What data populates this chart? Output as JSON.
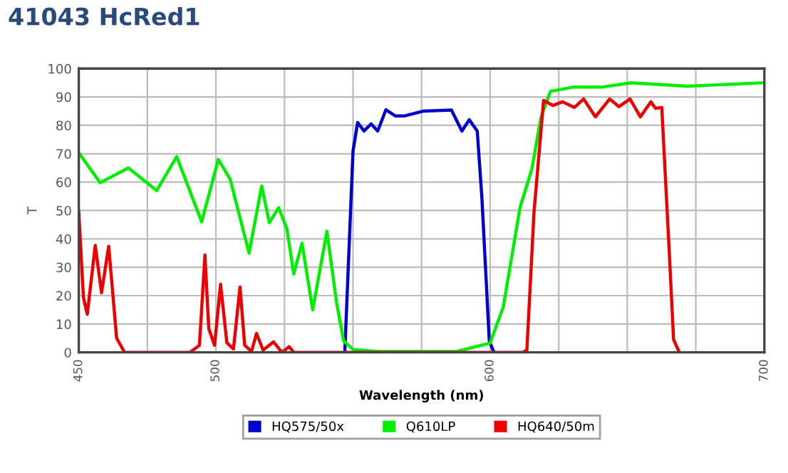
{
  "chart_data": {
    "type": "line",
    "title": "41043 HcRed1",
    "xlabel": "Wavelength (nm)",
    "ylabel": "T",
    "xlim": [
      450,
      700
    ],
    "xticks": [
      450,
      {
        "value": 475,
        "label": null
      },
      500,
      {
        "value": 525,
        "label": null
      },
      {
        "value": 550,
        "label": null
      },
      {
        "value": 575,
        "label": null
      },
      600,
      {
        "value": 625,
        "label": null
      },
      {
        "value": 650,
        "label": null
      },
      {
        "value": 675,
        "label": null
      },
      700
    ],
    "ylim": [
      0,
      100
    ],
    "yticks": [
      0,
      10,
      20,
      30,
      40,
      50,
      60,
      70,
      80,
      90,
      100
    ],
    "grid": true,
    "legend": "bottom",
    "line_style": "solid",
    "marker": "none",
    "series": [
      {
        "name": "HQ575/50x",
        "color": "#0000cc",
        "x": [
          547,
          550,
          551.7,
          554,
          556.6,
          559,
          562,
          565.5,
          568.6,
          575.5,
          585.9,
          589.7,
          592.4,
          595.3,
          597,
          599.7,
          601.4
        ],
        "values": [
          0,
          71,
          81,
          78,
          80.5,
          78,
          85.5,
          83.3,
          83.3,
          85,
          85.4,
          78,
          82,
          78,
          54.4,
          4,
          0
        ]
      },
      {
        "name": "Q610LP",
        "color": "#00ee00",
        "x": [
          450,
          457.8,
          468.1,
          478.4,
          485.7,
          494.8,
          500.9,
          505.2,
          512.1,
          516.7,
          519.5,
          522.9,
          525.9,
          528.4,
          531.4,
          535.3,
          540.5,
          544,
          546.6,
          550,
          559.5,
          587.6,
          600,
          604.8,
          610.9,
          615.2,
          618.6,
          622,
          630.7,
          641,
          651.4,
          672,
          699.7
        ],
        "values": [
          70.3,
          59.8,
          65,
          57,
          69,
          46,
          68,
          61,
          35,
          58.6,
          45.7,
          51,
          43.5,
          27.6,
          38.5,
          15,
          42.7,
          17.6,
          4,
          1,
          0.3,
          0.3,
          3.3,
          16,
          51,
          64.5,
          83,
          92,
          93.5,
          93.5,
          95,
          93.8,
          95
        ]
      },
      {
        "name": "HQ640/50m",
        "color": "#ee0000",
        "x": [
          450,
          451.7,
          453.1,
          456,
          458.3,
          460.9,
          463.8,
          466.7,
          490.5,
          494,
          496,
          497.4,
          499.5,
          501.7,
          504,
          506.4,
          508.8,
          510.5,
          513,
          514.8,
          517.2,
          521,
          524.1,
          526.7,
          528.4,
          612,
          613.4,
          616,
          619.5,
          622.9,
          626.4,
          630.7,
          634.1,
          638.4,
          643.6,
          647,
          651,
          654.8,
          658.6,
          660.3,
          662.6,
          665.2,
          666.9,
          669
        ],
        "values": [
          49.4,
          19.3,
          13.4,
          37.7,
          21,
          37.4,
          5,
          0,
          0,
          2.5,
          34.3,
          8.4,
          2.5,
          24,
          3.4,
          1.2,
          23,
          2.5,
          0.3,
          6.7,
          0.8,
          3.7,
          0,
          2,
          0,
          0,
          0.8,
          49.4,
          88.8,
          87,
          88.3,
          86.3,
          89.3,
          83,
          89.3,
          86.6,
          89.3,
          83,
          88.3,
          86,
          86.3,
          37.7,
          4.5,
          0
        ]
      }
    ]
  }
}
